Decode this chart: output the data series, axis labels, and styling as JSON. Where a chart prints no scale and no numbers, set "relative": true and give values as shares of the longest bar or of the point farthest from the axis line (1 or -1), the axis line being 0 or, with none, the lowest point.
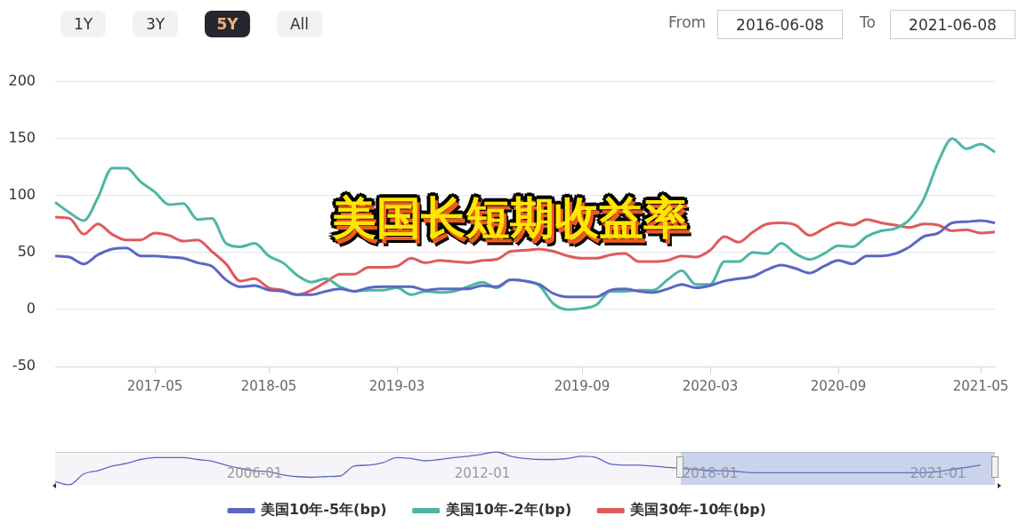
{
  "chart_data": [
    {
      "type": "other",
      "annotations": [
        "1Y",
        "3Y",
        "5Y",
        "All",
        "From",
        "2016-06-08",
        "To",
        "2021-06-08"
      ]
    },
    {
      "type": "line",
      "title": "美国长短期收益率",
      "categories": [
        null,
        null,
        null,
        null,
        null,
        null,
        null,
        "2017-05",
        null,
        null,
        null,
        null,
        null,
        null,
        null,
        "2018-05",
        null,
        null,
        null,
        null,
        null,
        null,
        null,
        null,
        "2019-03",
        null,
        null,
        null,
        null,
        null,
        null,
        null,
        null,
        null,
        null,
        null,
        null,
        "2019-09",
        null,
        null,
        null,
        null,
        null,
        null,
        null,
        null,
        "2020-03",
        null,
        null,
        null,
        null,
        null,
        null,
        null,
        null,
        "2020-09",
        null,
        null,
        null,
        null,
        null,
        null,
        null,
        null,
        null,
        "2021-05",
        null
      ],
      "series": [
        {
          "name": "美国10年-5年(bp)",
          "color": "#5c67c2",
          "values": [
            47,
            46,
            40,
            48,
            53,
            54,
            47,
            47,
            46,
            45,
            41,
            38,
            26,
            20,
            21,
            17,
            16,
            13,
            13,
            16,
            18,
            16,
            19,
            20,
            20,
            20,
            17,
            18,
            18,
            18,
            21,
            20,
            26,
            25,
            22,
            14,
            11,
            11,
            11,
            17,
            18,
            16,
            15,
            18,
            22,
            19,
            21,
            25,
            27,
            29,
            35,
            39,
            36,
            32,
            38,
            43,
            40,
            47,
            47,
            49,
            55,
            64,
            67,
            76,
            77,
            78,
            76
          ]
        },
        {
          "name": "美国10年-2年(bp)",
          "color": "#4db6a4",
          "values": [
            94,
            85,
            78,
            98,
            124,
            124,
            112,
            103,
            92,
            93,
            79,
            80,
            58,
            55,
            58,
            47,
            41,
            30,
            24,
            27,
            20,
            16,
            17,
            17,
            19,
            13,
            16,
            15,
            16,
            20,
            24,
            19,
            26,
            25,
            21,
            5,
            0,
            1,
            4,
            16,
            16,
            17,
            17,
            26,
            34,
            22,
            22,
            42,
            42,
            50,
            49,
            58,
            49,
            44,
            49,
            56,
            55,
            64,
            69,
            71,
            79,
            97,
            129,
            150,
            141,
            145,
            138
          ]
        },
        {
          "name": "美国30年-10年(bp)",
          "color": "#e05a5c",
          "values": [
            81,
            80,
            66,
            75,
            66,
            61,
            61,
            67,
            65,
            60,
            61,
            51,
            40,
            25,
            27,
            19,
            17,
            13,
            17,
            24,
            31,
            31,
            37,
            37,
            38,
            45,
            41,
            43,
            42,
            41,
            43,
            44,
            51,
            52,
            53,
            51,
            47,
            45,
            45,
            48,
            49,
            42,
            42,
            43,
            47,
            46,
            52,
            64,
            59,
            68,
            75,
            76,
            74,
            65,
            71,
            76,
            74,
            79,
            76,
            74,
            72,
            75,
            74,
            69,
            70,
            67,
            68
          ]
        }
      ],
      "ylim": [
        -50,
        200
      ],
      "yticks": [
        -50,
        0,
        50,
        100,
        150,
        200
      ],
      "grid": "y",
      "legend": "bottom",
      "marker": "none"
    },
    {
      "type": "line",
      "categories": [
        null,
        null,
        null,
        null,
        null,
        null,
        null,
        null,
        null,
        null,
        null,
        null,
        null,
        null,
        "2006-01",
        null,
        null,
        null,
        null,
        null,
        null,
        null,
        null,
        null,
        null,
        null,
        null,
        null,
        null,
        null,
        "2012-01",
        null,
        null,
        null,
        null,
        null,
        null,
        null,
        null,
        null,
        null,
        null,
        null,
        null,
        null,
        null,
        "2018-01",
        null,
        null,
        null,
        null,
        null,
        null,
        null,
        null,
        null,
        null,
        null,
        null,
        null,
        null,
        null,
        "2021-01",
        null,
        null,
        null,
        null
      ],
      "series": [
        {
          "color": "#5c67c2",
          "values": [
            0.1,
            0,
            0.33,
            0.43,
            0.57,
            0.65,
            0.77,
            0.83,
            0.83,
            0.83,
            0.77,
            0.72,
            0.6,
            0.5,
            0.43,
            0.4,
            0.3,
            0.25,
            0.23,
            0.25,
            0.27,
            0.57,
            0.6,
            0.67,
            0.83,
            0.8,
            0.73,
            0.77,
            0.83,
            0.87,
            0.93,
            1,
            0.87,
            0.8,
            0.77,
            0.77,
            0.8,
            0.87,
            0.83,
            0.63,
            0.6,
            0.6,
            0.57,
            0.53,
            0.5,
            0.47,
            0.43,
            0.43,
            0.4,
            0.37,
            0.37,
            0.37,
            0.37,
            0.37,
            0.37,
            0.37,
            0.37,
            0.37,
            0.37,
            0.37,
            0.37,
            0.37,
            0.4,
            0.47,
            0.53,
            0.6,
            null
          ]
        }
      ],
      "relative": true,
      "legend": false,
      "marker": "none"
    }
  ]
}
